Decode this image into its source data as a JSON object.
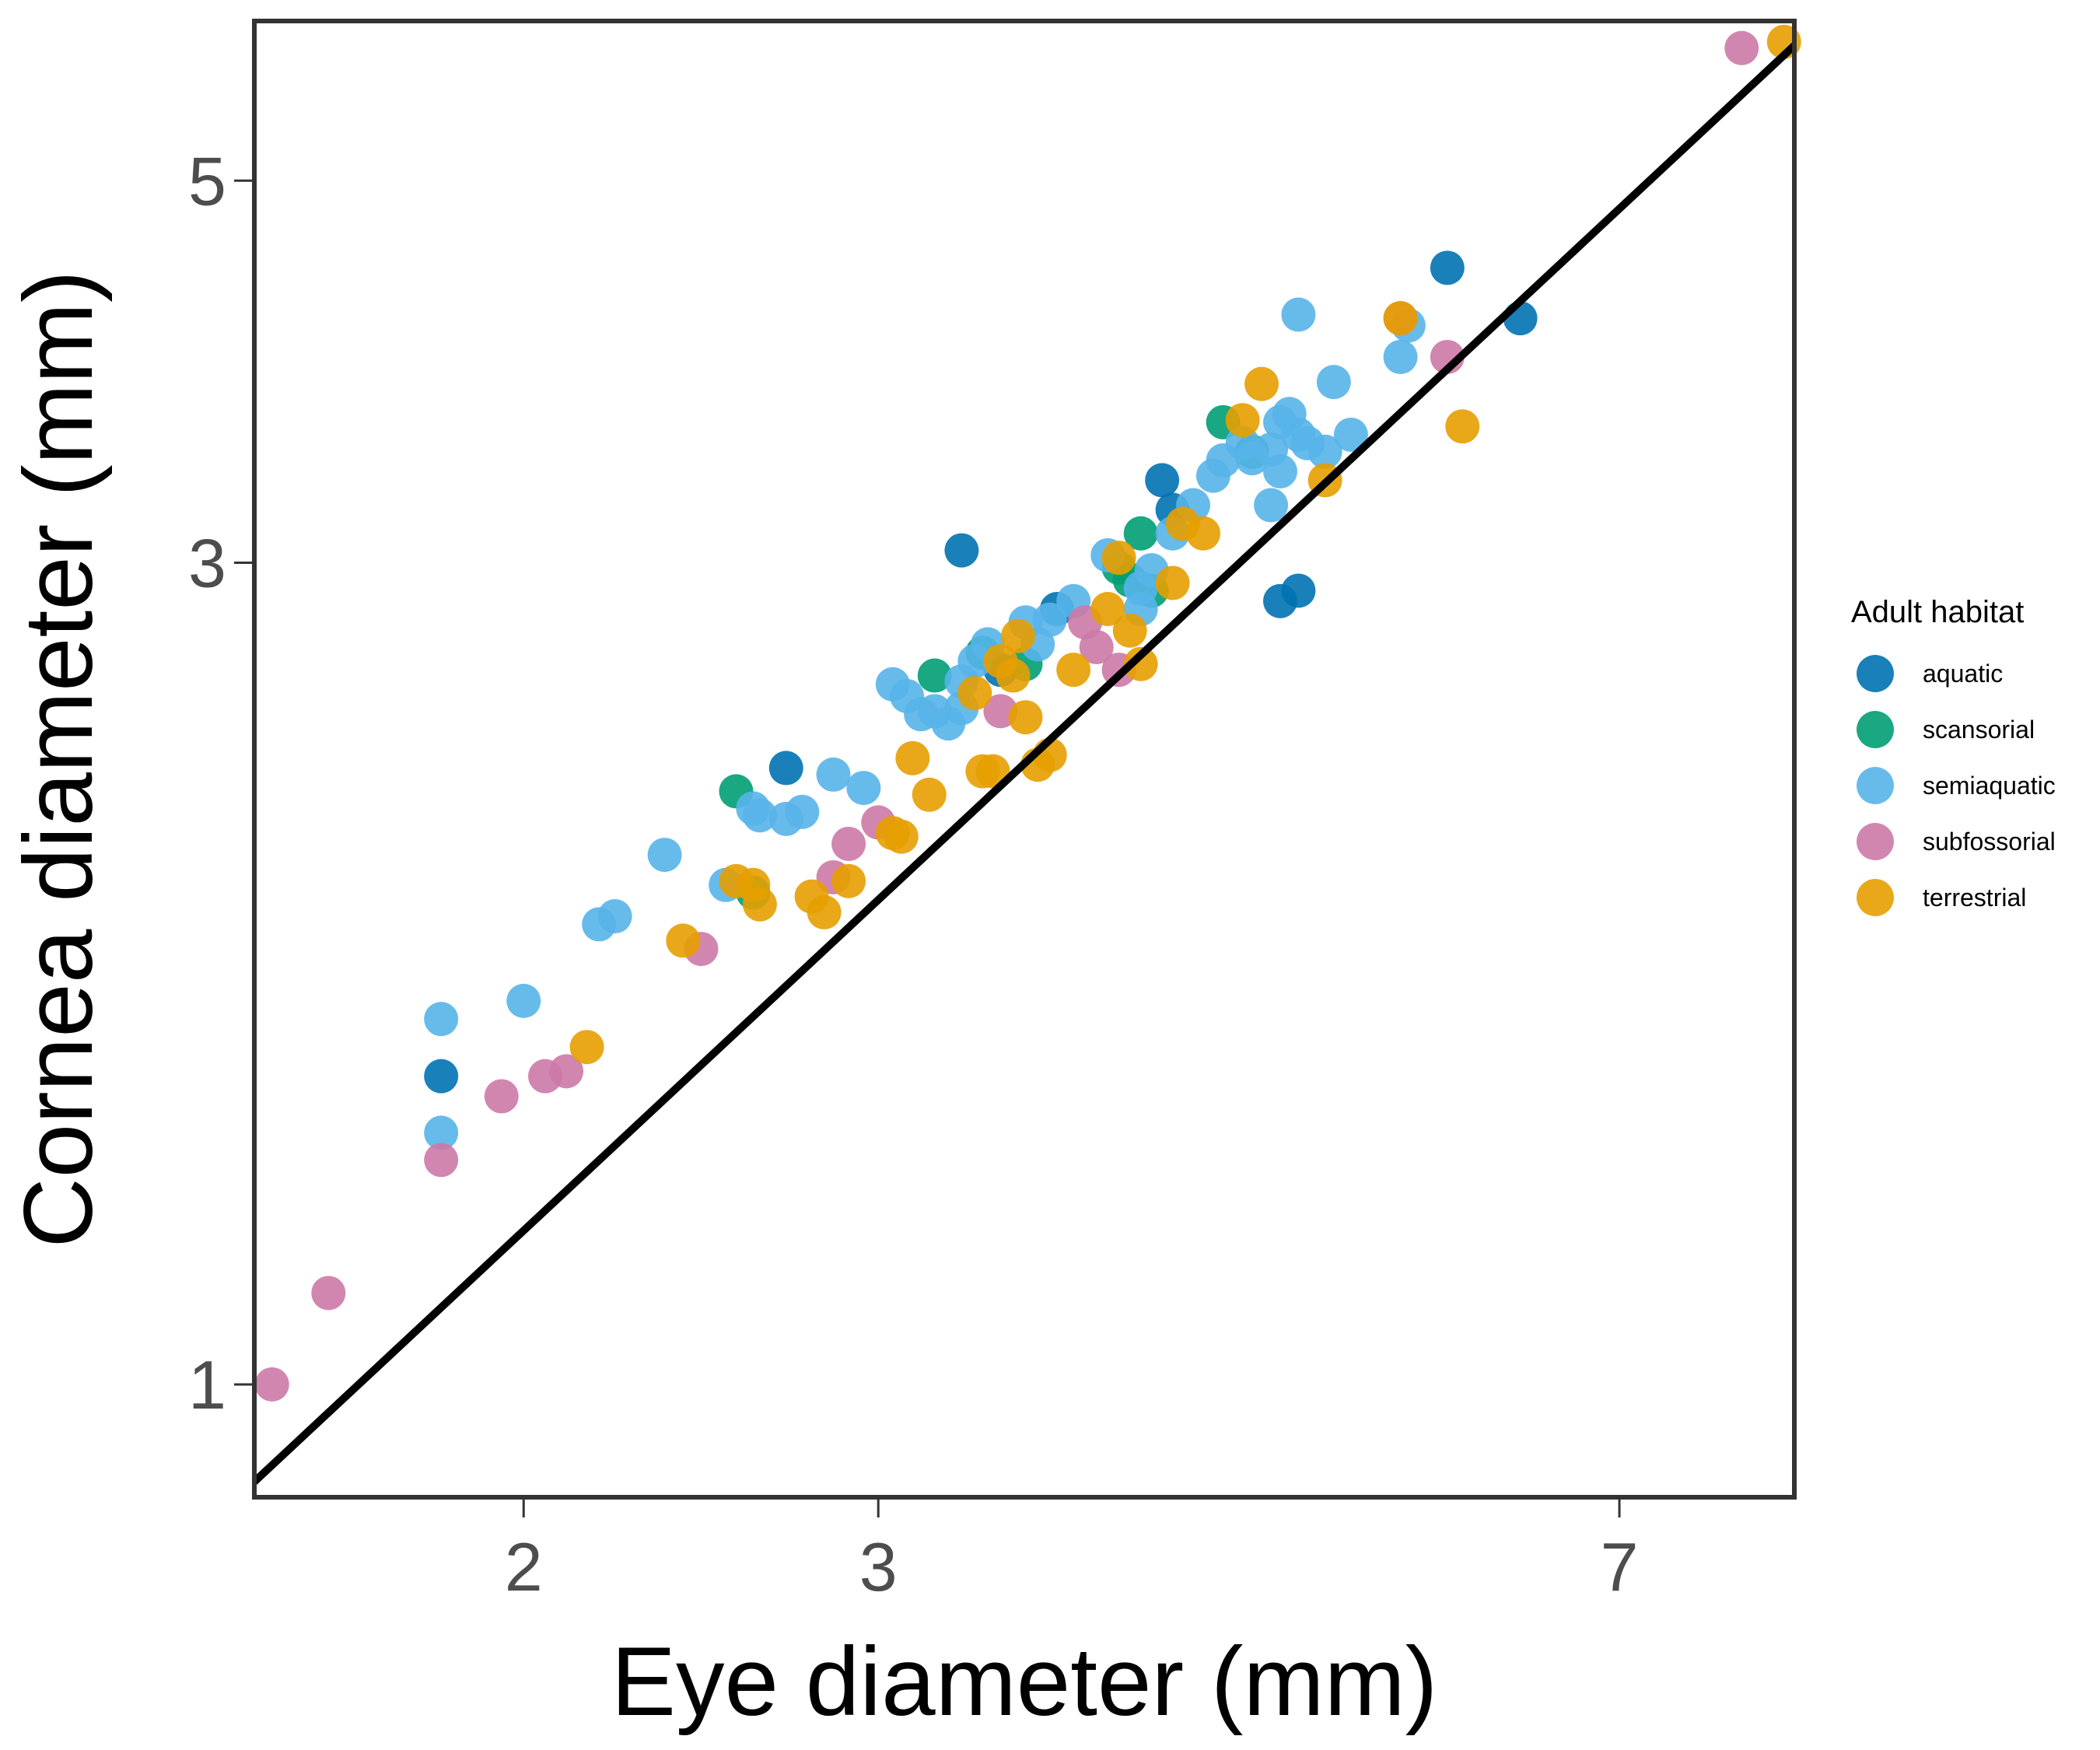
{
  "chart_data": {
    "type": "scatter",
    "title": "",
    "xlabel": "Eye diameter (mm)",
    "ylabel": "Cornea diameter (mm)",
    "xscale": "log",
    "yscale": "log",
    "xlim": [
      1.47,
      8.55
    ],
    "ylim": [
      0.86,
      6.19
    ],
    "xticks": [
      2,
      3,
      7
    ],
    "yticks": [
      1,
      3,
      5
    ],
    "grid": false,
    "legend": {
      "title": "Adult habitat",
      "position": "right"
    },
    "fit_line": {
      "color": "#000000",
      "points": [
        [
          1.47,
          0.878
        ],
        [
          8.55,
          5.99
        ]
      ]
    },
    "series": [
      {
        "name": "aquatic",
        "color": "#0072B2",
        "points": [
          [
            3.3,
            3.05
          ],
          [
            2.7,
            2.28
          ],
          [
            1.82,
            1.51
          ],
          [
            3.68,
            2.82
          ],
          [
            4.15,
            3.35
          ],
          [
            4.2,
            3.22
          ],
          [
            4.75,
            2.85
          ],
          [
            4.85,
            2.89
          ],
          [
            5.75,
            4.45
          ],
          [
            6.25,
            4.16
          ],
          [
            3.45,
            2.6
          ]
        ]
      },
      {
        "name": "scansorial",
        "color": "#009E73",
        "points": [
          [
            2.55,
            2.21
          ],
          [
            2.6,
            1.93
          ],
          [
            3.2,
            2.58
          ],
          [
            3.55,
            2.62
          ],
          [
            3.95,
            2.98
          ],
          [
            4.05,
            3.12
          ],
          [
            4.1,
            2.89
          ],
          [
            4.45,
            3.62
          ],
          [
            4.6,
            3.48
          ],
          [
            3.38,
            2.66
          ],
          [
            4.0,
            2.93
          ]
        ]
      },
      {
        "name": "semiaquatic",
        "color": "#56B4E9",
        "points": [
          [
            1.82,
            1.63
          ],
          [
            1.82,
            1.4
          ],
          [
            2.0,
            1.67
          ],
          [
            2.18,
            1.85
          ],
          [
            2.22,
            1.87
          ],
          [
            2.35,
            2.03
          ],
          [
            2.52,
            1.95
          ],
          [
            2.6,
            2.16
          ],
          [
            2.62,
            2.14
          ],
          [
            2.7,
            2.13
          ],
          [
            2.75,
            2.15
          ],
          [
            2.85,
            2.26
          ],
          [
            2.95,
            2.22
          ],
          [
            3.05,
            2.55
          ],
          [
            3.1,
            2.51
          ],
          [
            3.15,
            2.45
          ],
          [
            3.2,
            2.46
          ],
          [
            3.25,
            2.42
          ],
          [
            3.3,
            2.56
          ],
          [
            3.35,
            2.63
          ],
          [
            3.4,
            2.69
          ],
          [
            3.55,
            2.77
          ],
          [
            3.65,
            2.78
          ],
          [
            3.75,
            2.85
          ],
          [
            3.9,
            3.03
          ],
          [
            4.05,
            2.82
          ],
          [
            4.1,
            2.97
          ],
          [
            4.2,
            3.12
          ],
          [
            4.3,
            3.24
          ],
          [
            4.4,
            3.37
          ],
          [
            4.45,
            3.44
          ],
          [
            4.55,
            3.52
          ],
          [
            4.6,
            3.45
          ],
          [
            4.7,
            3.49
          ],
          [
            4.75,
            3.62
          ],
          [
            4.8,
            3.66
          ],
          [
            4.85,
            3.56
          ],
          [
            4.9,
            3.52
          ],
          [
            5.0,
            3.48
          ],
          [
            5.05,
            3.82
          ],
          [
            5.15,
            3.56
          ],
          [
            5.45,
            3.95
          ],
          [
            5.5,
            4.12
          ],
          [
            4.85,
            4.18
          ],
          [
            4.75,
            3.39
          ],
          [
            4.7,
            3.24
          ],
          [
            4.05,
            2.9
          ],
          [
            3.3,
            2.47
          ],
          [
            3.6,
            2.69
          ]
        ]
      },
      {
        "name": "subfossorial",
        "color": "#CC79A7",
        "points": [
          [
            1.5,
            1.0
          ],
          [
            1.6,
            1.13
          ],
          [
            1.82,
            1.35
          ],
          [
            1.95,
            1.47
          ],
          [
            2.05,
            1.51
          ],
          [
            2.1,
            1.52
          ],
          [
            2.45,
            1.79
          ],
          [
            2.85,
            1.97
          ],
          [
            2.9,
            2.06
          ],
          [
            3.0,
            2.12
          ],
          [
            3.45,
            2.46
          ],
          [
            3.8,
            2.77
          ],
          [
            3.85,
            2.68
          ],
          [
            3.95,
            2.6
          ],
          [
            5.45,
            4.16
          ],
          [
            5.75,
            3.95
          ],
          [
            8.05,
            5.97
          ]
        ]
      },
      {
        "name": "terrestrial",
        "color": "#E69F00",
        "points": [
          [
            2.15,
            1.57
          ],
          [
            2.4,
            1.81
          ],
          [
            2.6,
            1.95
          ],
          [
            2.62,
            1.9
          ],
          [
            2.78,
            1.92
          ],
          [
            2.82,
            1.88
          ],
          [
            2.9,
            1.96
          ],
          [
            3.05,
            2.09
          ],
          [
            3.12,
            2.31
          ],
          [
            3.18,
            2.2
          ],
          [
            3.35,
            2.52
          ],
          [
            3.38,
            2.27
          ],
          [
            3.42,
            2.27
          ],
          [
            3.45,
            2.63
          ],
          [
            3.52,
            2.72
          ],
          [
            3.5,
            2.58
          ],
          [
            3.55,
            2.44
          ],
          [
            3.6,
            2.29
          ],
          [
            3.65,
            2.32
          ],
          [
            3.75,
            2.6
          ],
          [
            3.9,
            2.82
          ],
          [
            3.95,
            3.02
          ],
          [
            4.0,
            2.74
          ],
          [
            4.05,
            2.62
          ],
          [
            4.2,
            2.92
          ],
          [
            4.25,
            3.16
          ],
          [
            4.35,
            3.12
          ],
          [
            4.55,
            3.63
          ],
          [
            4.65,
            3.81
          ],
          [
            5.0,
            3.35
          ],
          [
            5.45,
            4.16
          ],
          [
            5.85,
            3.6
          ],
          [
            8.45,
            6.02
          ],
          [
            3.08,
            2.08
          ],
          [
            2.55,
            1.96
          ]
        ]
      }
    ]
  }
}
